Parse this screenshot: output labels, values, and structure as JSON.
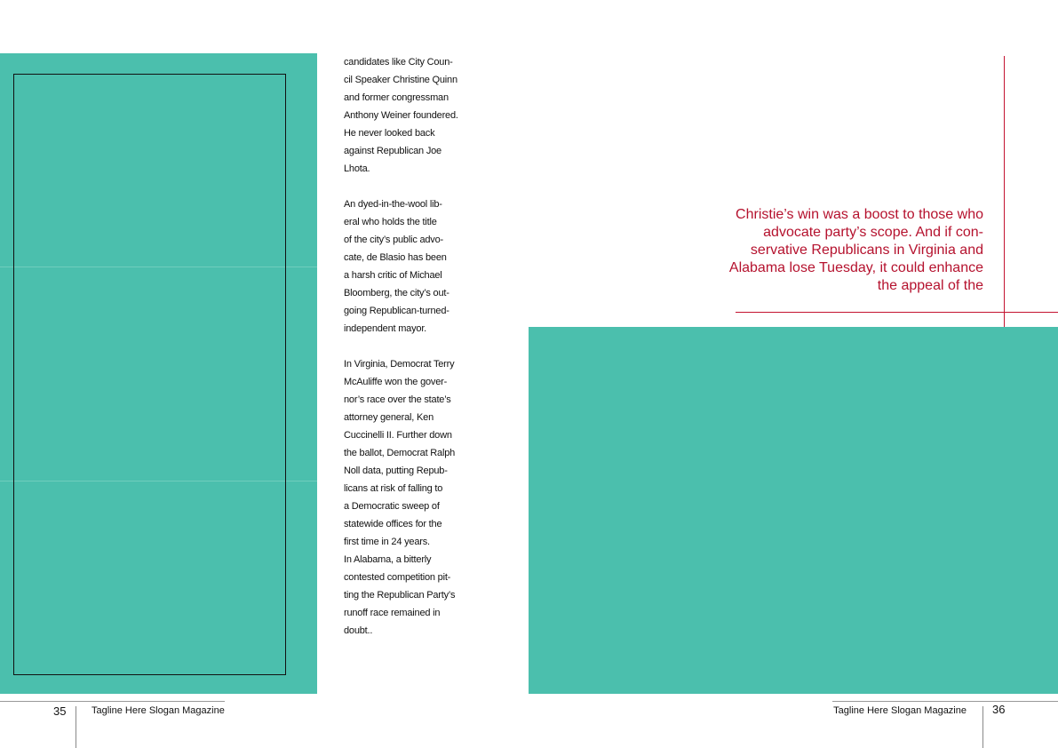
{
  "left_page": {
    "page_number": "35",
    "tagline": "Tagline Here Slogan Magazine",
    "body_lines": [
      "candidates like City Coun-",
      "cil Speaker Christine Quinn",
      "and former congressman",
      "Anthony Weiner foundered.",
      "He never looked back",
      "against Republican Joe",
      "Lhota.",
      "",
      "An dyed-in-the-wool lib-",
      "eral who holds the title",
      "of the city’s public advo-",
      "cate, de Blasio has been",
      "a harsh critic of Michael",
      "Bloomberg, the city’s out-",
      "going Republican-turned-",
      "independent mayor.",
      "",
      "In Virginia, Democrat Terry",
      "McAuliffe won the gover-",
      "nor’s race over the state’s",
      "attorney general, Ken",
      "Cuccinelli II. Further down",
      "the ballot, Democrat Ralph",
      "Noll data, putting Repub-",
      "licans at risk of falling to",
      "a Democratic sweep of",
      "statewide offices for the",
      "first time in 24 years.",
      "In Alabama, a bitterly",
      "contested competition pit-",
      "ting the Republican Party’s",
      "runoff race remained in",
      "doubt.."
    ]
  },
  "right_page": {
    "page_number": "36",
    "tagline": "Tagline Here Slogan Magazine",
    "pull_quote_lines": [
      "Christie’s win was a boost to those who",
      "advocate party’s scope. And if con-",
      "servative Republicans in Virginia and",
      "Alabama lose Tuesday, it could enhance",
      "the appeal of the"
    ]
  },
  "colors": {
    "accent": "#4bbfad",
    "quote": "#b5122e"
  }
}
